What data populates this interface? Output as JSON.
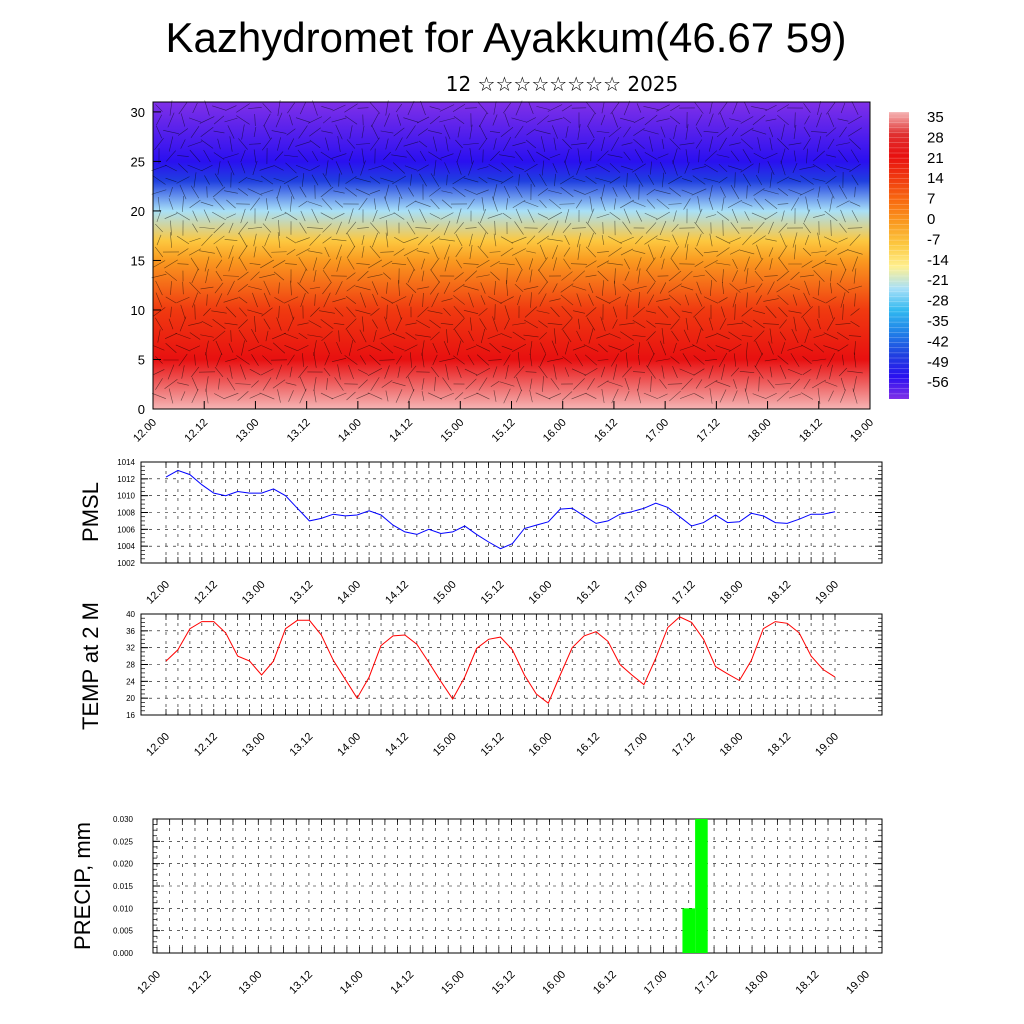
{
  "title": "Kazhydromet for Ayakkum(46.67 59)",
  "subtitle": "12 ☆☆☆☆☆☆☆☆ 2025",
  "time_ticks": [
    "12.00",
    "12.12",
    "13.00",
    "13.12",
    "14.00",
    "14.12",
    "15.00",
    "15.12",
    "16.00",
    "16.12",
    "17.00",
    "17.12",
    "18.00",
    "18.12",
    "19.00"
  ],
  "chart_data": [
    {
      "type": "heatmap",
      "title": "",
      "xlabel": "",
      "ylabel": "",
      "x": [
        "12.00",
        "12.12",
        "13.00",
        "13.12",
        "14.00",
        "14.12",
        "15.00",
        "15.12",
        "16.00",
        "16.12",
        "17.00",
        "17.12",
        "18.00",
        "18.12",
        "19.00"
      ],
      "ylim": [
        0,
        31
      ],
      "yticks": [
        0,
        5,
        10,
        15,
        20,
        25,
        30
      ],
      "colorbar_labels": [
        "35",
        "28",
        "21",
        "14",
        "7",
        "0",
        "-7",
        "-14",
        "-21",
        "-28",
        "-35",
        "-42",
        "-49",
        "-56"
      ],
      "colorbar_colors": [
        "#f5b5b5",
        "#e03030",
        "#e81010",
        "#f03a10",
        "#f86a10",
        "#fa9a20",
        "#fcc840",
        "#fff090",
        "#a8e0f8",
        "#30b8f0",
        "#2080e8",
        "#2040e0",
        "#2a10f0",
        "#8030e8"
      ],
      "profile": [
        {
          "height": 0,
          "value": 32
        },
        {
          "height": 5,
          "value": 24
        },
        {
          "height": 10,
          "value": 14
        },
        {
          "height": 15,
          "value": 0
        },
        {
          "height": 17,
          "value": -10
        },
        {
          "height": 20,
          "value": -22
        },
        {
          "height": 23,
          "value": -40
        },
        {
          "height": 25,
          "value": -50
        },
        {
          "height": 31,
          "value": -56
        }
      ]
    },
    {
      "type": "line",
      "ylabel": "PMSL",
      "ylim": [
        1002,
        1014
      ],
      "yticks": [
        1002,
        1004,
        1006,
        1008,
        1010,
        1012,
        1014
      ],
      "series": [
        {
          "color": "#0000ff",
          "values": [
            1012.2,
            1013.0,
            1012.5,
            1011.3,
            1010.3,
            1010.0,
            1010.5,
            1010.3,
            1010.3,
            1010.8,
            1010.0,
            1008.5,
            1007.0,
            1007.3,
            1007.8,
            1007.6,
            1007.7,
            1008.2,
            1007.7,
            1006.5,
            1005.7,
            1005.4,
            1006.0,
            1005.5,
            1005.7,
            1006.4,
            1005.4,
            1004.5,
            1003.7,
            1004.3,
            1006.1,
            1006.5,
            1006.9,
            1008.4,
            1008.5,
            1007.6,
            1006.7,
            1007.0,
            1007.8,
            1008.1,
            1008.5,
            1009.1,
            1008.6,
            1007.5,
            1006.4,
            1006.8,
            1007.7,
            1006.8,
            1006.9,
            1007.9,
            1007.6,
            1006.8,
            1006.7,
            1007.2,
            1007.8,
            1007.8,
            1008.1
          ]
        }
      ]
    },
    {
      "type": "line",
      "ylabel": "TEMP at 2 M",
      "ylim": [
        16,
        40
      ],
      "yticks": [
        16,
        20,
        24,
        28,
        32,
        36,
        40
      ],
      "series": [
        {
          "color": "#ff0000",
          "values": [
            28.8,
            31.5,
            36.5,
            38.2,
            38.2,
            35.5,
            30.0,
            28.8,
            25.5,
            28.8,
            36.5,
            38.5,
            38.5,
            35.0,
            29.0,
            24.5,
            20.0,
            25.0,
            32.5,
            34.8,
            35.0,
            32.8,
            28.5,
            24.0,
            19.8,
            25.0,
            31.8,
            34.0,
            34.5,
            31.5,
            25.5,
            21.0,
            18.8,
            25.5,
            32.0,
            34.8,
            35.8,
            33.5,
            28.0,
            25.5,
            23.2,
            29.5,
            36.8,
            39.3,
            38.0,
            34.0,
            27.5,
            25.8,
            24.2,
            29.0,
            36.5,
            38.2,
            37.8,
            35.5,
            30.0,
            26.8,
            25.0
          ]
        }
      ]
    },
    {
      "type": "bar",
      "ylabel": "PRECIP, mm",
      "ylim": [
        0,
        0.03
      ],
      "yticks": [
        "0.000",
        "0.005",
        "0.010",
        "0.015",
        "0.020",
        "0.025",
        "0.030"
      ],
      "bar_color": "#00ff00",
      "bars": [
        {
          "time": "17.06",
          "value": 0.01
        },
        {
          "time": "17.09",
          "value": 0.03
        }
      ]
    }
  ]
}
